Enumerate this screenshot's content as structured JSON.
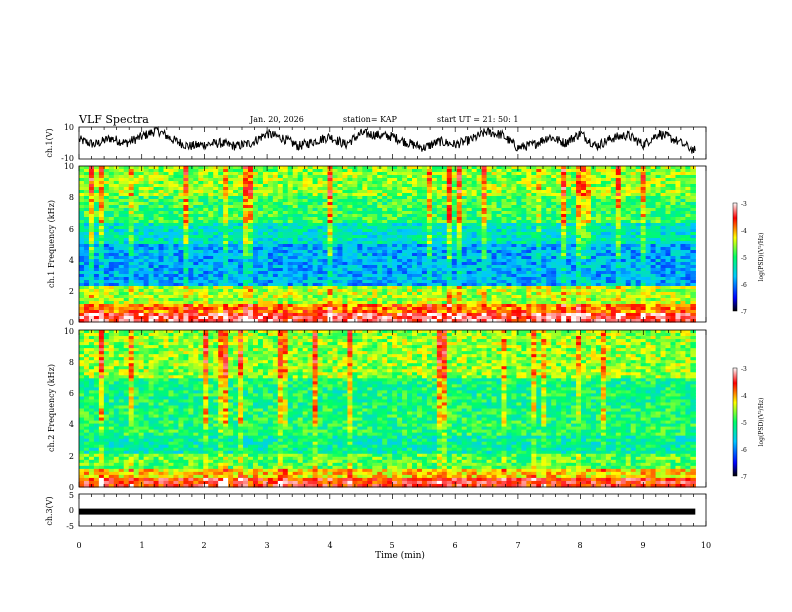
{
  "header": {
    "title": "VLF Spectra",
    "date": "Jan. 20, 2026",
    "station": "station= KAP",
    "start": "start  UT  =   21: 50: 1"
  },
  "chart_data": [
    {
      "type": "line",
      "name": "ch1-waveform",
      "ylabel": "ch.1(V)",
      "ylim": [
        -10,
        10
      ],
      "y_ticks": [
        "10",
        "-10"
      ],
      "x": [
        0.0,
        0.25,
        0.5,
        0.75,
        1.0,
        1.25,
        1.5,
        1.75,
        2.0,
        2.25,
        2.5,
        2.75,
        3.0,
        3.25,
        3.5,
        3.75,
        4.0,
        4.25,
        4.5,
        4.75,
        5.0,
        5.25,
        5.5,
        5.75,
        6.0,
        6.25,
        6.5,
        6.75,
        7.0,
        7.25,
        7.5,
        7.75,
        8.0,
        8.25,
        8.5,
        8.75,
        9.0,
        9.25,
        9.5,
        9.83
      ],
      "values": [
        2,
        -1,
        3,
        0,
        4,
        8,
        2,
        -2,
        -1,
        0,
        -2,
        0,
        6,
        3,
        -2,
        1,
        4,
        -1,
        6,
        5,
        4,
        0,
        -3,
        1,
        -1,
        2,
        7,
        5,
        -3,
        -1,
        4,
        0,
        6,
        -2,
        3,
        5,
        -1,
        6,
        2,
        -5
      ]
    },
    {
      "type": "heatmap",
      "name": "ch1-spectrogram",
      "ylabel": "ch.1 Frequency (kHz)",
      "ylim": [
        0,
        10
      ],
      "xlim": [
        0,
        9.83
      ],
      "y_ticks": [
        "0",
        "2",
        "4",
        "6",
        "8",
        "10"
      ],
      "colorbar": {
        "label": "log(PSD)(V²/Hz)",
        "range": [
          -7,
          -3
        ],
        "ticks": [
          "-3",
          "-4",
          "-5",
          "-6",
          "-7"
        ]
      }
    },
    {
      "type": "heatmap",
      "name": "ch2-spectrogram",
      "ylabel": "ch.2 Frequency (kHz)",
      "ylim": [
        0,
        10
      ],
      "xlim": [
        0,
        9.83
      ],
      "y_ticks": [
        "0",
        "2",
        "4",
        "6",
        "8",
        "10"
      ],
      "colorbar": {
        "label": "log(PSD)(V²/Hz)",
        "range": [
          -7,
          -3
        ],
        "ticks": [
          "-3",
          "-4",
          "-5",
          "-6",
          "-7"
        ]
      }
    },
    {
      "type": "line",
      "name": "ch3-signal",
      "ylabel": "ch.3(V)",
      "ylim": [
        -5,
        5
      ],
      "y_ticks": [
        "5",
        "0",
        "-5"
      ],
      "x": [
        0,
        9.83
      ],
      "values": [
        -0.5,
        -0.5
      ]
    }
  ],
  "x_axis": {
    "label": "Time  (min)",
    "range": [
      0,
      10
    ],
    "ticks": [
      "0",
      "1",
      "2",
      "3",
      "4",
      "5",
      "6",
      "7",
      "8",
      "9",
      "10"
    ]
  }
}
